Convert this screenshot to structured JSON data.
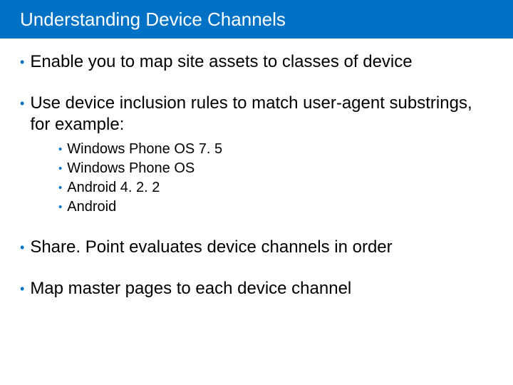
{
  "colors": {
    "accent": "#0072c6",
    "background": "#ffffff",
    "text": "#000000",
    "title_text": "#ffffff"
  },
  "typography": {
    "title_fontsize": 26,
    "title_weight": 300,
    "body_fontsize": 24,
    "sub_fontsize": 20,
    "font_family": "Segoe UI"
  },
  "slide": {
    "title": "Understanding Device Channels",
    "bullets": [
      {
        "text": "Enable you to map site assets to classes of device"
      },
      {
        "text": "Use device inclusion rules to match user-agent substrings, for example:",
        "sub": [
          "Windows Phone OS 7. 5",
          "Windows Phone OS",
          "Android 4. 2. 2",
          "Android"
        ]
      },
      {
        "text": "Share. Point evaluates device channels in order"
      },
      {
        "text": "Map master pages to each device channel"
      }
    ]
  }
}
